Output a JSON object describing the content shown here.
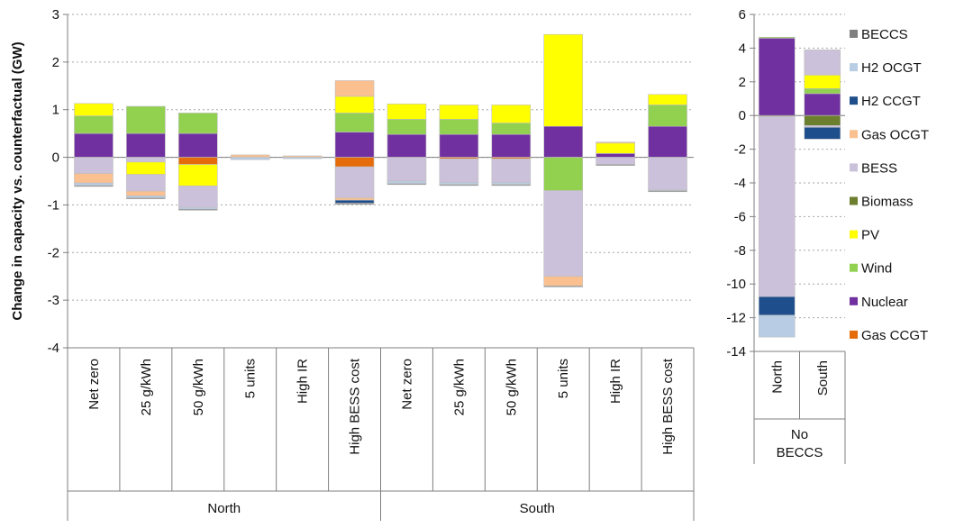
{
  "chart_data": [
    {
      "type": "stacked-bar",
      "ylabel": "Change in capacity vs. counterfactual (GW)",
      "ylim": [
        -4,
        3
      ],
      "yticks": [
        3,
        2,
        1,
        0,
        -1,
        -2,
        -3,
        -4
      ],
      "grid": true,
      "groups": [
        {
          "label": "North",
          "categories": [
            "Net zero",
            "25 g/kWh",
            "50 g/kWh",
            "5 units",
            "High IR",
            "High BESS cost"
          ]
        },
        {
          "label": "South",
          "categories": [
            "Net zero",
            "25 g/kWh",
            "50 g/kWh",
            "5 units",
            "High IR",
            "High BESS cost"
          ]
        }
      ],
      "bars": [
        {
          "segments": [
            [
              "Nuclear",
              0.5
            ],
            [
              "Wind",
              0.37
            ],
            [
              "PV",
              0.26
            ],
            [
              "BESS",
              -0.34
            ],
            [
              "Gas OCGT",
              -0.2
            ],
            [
              "H2 OCGT",
              -0.05
            ],
            [
              "BECCS",
              -0.02
            ]
          ]
        },
        {
          "segments": [
            [
              "Nuclear",
              0.5
            ],
            [
              "Wind",
              0.57
            ],
            [
              "BESS",
              -0.1
            ],
            [
              "PV",
              -0.26
            ],
            [
              "BESS",
              -0.35
            ],
            [
              "Gas OCGT",
              -0.1
            ],
            [
              "H2 OCGT",
              -0.04
            ],
            [
              "BECCS",
              -0.02
            ]
          ]
        },
        {
          "segments": [
            [
              "Nuclear",
              0.5
            ],
            [
              "Wind",
              0.43
            ],
            [
              "Gas CCGT",
              -0.15
            ],
            [
              "PV",
              -0.45
            ],
            [
              "BESS",
              -0.45
            ],
            [
              "H2 OCGT",
              -0.04
            ],
            [
              "BECCS",
              -0.02
            ]
          ]
        },
        {
          "segments": [
            [
              "Gas OCGT",
              0.05
            ],
            [
              "H2 OCGT",
              -0.05
            ]
          ]
        },
        {
          "segments": [
            [
              "Gas OCGT",
              0.03
            ],
            [
              "H2 OCGT",
              -0.03
            ]
          ]
        },
        {
          "segments": [
            [
              "Nuclear",
              0.53
            ],
            [
              "Wind",
              0.4
            ],
            [
              "PV",
              0.35
            ],
            [
              "Gas OCGT",
              0.33
            ],
            [
              "Gas CCGT",
              -0.2
            ],
            [
              "BESS",
              -0.65
            ],
            [
              "Gas OCGT",
              -0.05
            ],
            [
              "H2 CCGT",
              -0.06
            ],
            [
              "BECCS",
              -0.03
            ]
          ]
        },
        {
          "segments": [
            [
              "Nuclear",
              0.48
            ],
            [
              "Wind",
              0.32
            ],
            [
              "PV",
              0.32
            ],
            [
              "BESS",
              -0.5
            ],
            [
              "H2 OCGT",
              -0.05
            ],
            [
              "BECCS",
              -0.02
            ]
          ]
        },
        {
          "segments": [
            [
              "Nuclear",
              0.48
            ],
            [
              "Wind",
              0.32
            ],
            [
              "PV",
              0.3
            ],
            [
              "Gas CCGT",
              -0.03
            ],
            [
              "BESS",
              -0.5
            ],
            [
              "H2 OCGT",
              -0.04
            ],
            [
              "BECCS",
              -0.02
            ]
          ]
        },
        {
          "segments": [
            [
              "Nuclear",
              0.48
            ],
            [
              "Wind",
              0.24
            ],
            [
              "PV",
              0.38
            ],
            [
              "Gas CCGT",
              -0.03
            ],
            [
              "BESS",
              -0.5
            ],
            [
              "H2 OCGT",
              -0.04
            ],
            [
              "BECCS",
              -0.02
            ]
          ]
        },
        {
          "segments": [
            [
              "Nuclear",
              0.65
            ],
            [
              "PV",
              1.93
            ],
            [
              "Wind",
              -0.7
            ],
            [
              "BESS",
              -1.8
            ],
            [
              "Gas OCGT",
              -0.2
            ],
            [
              "BECCS",
              -0.02
            ]
          ]
        },
        {
          "segments": [
            [
              "Nuclear",
              0.08
            ],
            [
              "PV",
              0.22
            ],
            [
              "Gas OCGT",
              0.02
            ],
            [
              "BESS",
              -0.15
            ],
            [
              "BECCS",
              -0.02
            ]
          ]
        },
        {
          "segments": [
            [
              "Nuclear",
              0.65
            ],
            [
              "Wind",
              0.45
            ],
            [
              "PV",
              0.22
            ],
            [
              "BESS",
              -0.68
            ],
            [
              "H2 OCGT",
              -0.02
            ],
            [
              "BECCS",
              -0.02
            ]
          ]
        }
      ]
    },
    {
      "type": "stacked-bar",
      "ylim": [
        -14,
        6
      ],
      "yticks": [
        6,
        4,
        2,
        0,
        -2,
        -4,
        -6,
        -8,
        -10,
        -12,
        -14
      ],
      "grid": true,
      "group_label": "No BECCS",
      "categories": [
        "North",
        "South"
      ],
      "bars": [
        {
          "segments": [
            [
              "Nuclear",
              4.6
            ],
            [
              "Wind",
              0.05
            ],
            [
              "Biomass",
              -0.05
            ],
            [
              "BESS",
              -10.7
            ],
            [
              "H2 CCGT",
              -1.1
            ],
            [
              "H2 OCGT",
              -1.3
            ]
          ]
        },
        {
          "segments": [
            [
              "Nuclear",
              1.3
            ],
            [
              "Wind",
              0.3
            ],
            [
              "PV",
              0.8
            ],
            [
              "BESS",
              1.5
            ],
            [
              "Biomass",
              -0.6
            ],
            [
              "BESS",
              -0.1
            ],
            [
              "H2 CCGT",
              -0.7
            ]
          ]
        }
      ]
    }
  ],
  "legend": {
    "position": "right",
    "items": [
      {
        "name": "BECCS",
        "color": "#7f7f7f"
      },
      {
        "name": "H2 OCGT",
        "color": "#b8cce4"
      },
      {
        "name": "H2 CCGT",
        "color": "#1f4e8c"
      },
      {
        "name": "Gas OCGT",
        "color": "#fac090"
      },
      {
        "name": "BESS",
        "color": "#ccc1da"
      },
      {
        "name": "Biomass",
        "color": "#6b7f2e"
      },
      {
        "name": "PV",
        "color": "#ffff00"
      },
      {
        "name": "Wind",
        "color": "#92d050"
      },
      {
        "name": "Nuclear",
        "color": "#7030a0"
      },
      {
        "name": "Gas CCGT",
        "color": "#e46c0a"
      }
    ]
  },
  "colors": {
    "axis": "#7f7f7f",
    "grid": "#a6a6a6",
    "bar_border": "#bfbfbf"
  }
}
